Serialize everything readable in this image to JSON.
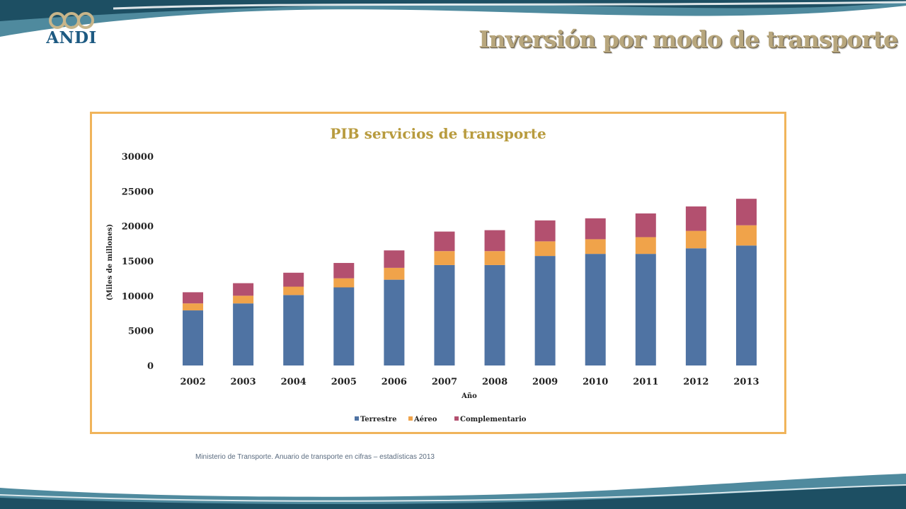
{
  "slide": {
    "title": "Inversión por modo de transporte",
    "logo_text": "ANDI",
    "source": "Ministerio de Transporte. Anuario de transporte en cifras – estadísticas 2013"
  },
  "colors": {
    "terrestre": "#4f73a3",
    "aereo": "#f0a34a",
    "complementario": "#b3506f",
    "title": "#b89b3e",
    "frame": "#f0b45b",
    "wave_dark": "#1d4f63",
    "wave_light": "#4f8a9e"
  },
  "chart_data": {
    "type": "bar",
    "stacked": true,
    "title": "PIB servicios de transporte",
    "xlabel": "Año",
    "ylabel": "(Miles de millones)",
    "categories": [
      "2002",
      "2003",
      "2004",
      "2005",
      "2006",
      "2007",
      "2008",
      "2009",
      "2010",
      "2011",
      "2012",
      "2013"
    ],
    "series": [
      {
        "name": "Terrestre",
        "values": [
          7900,
          8900,
          10100,
          11200,
          12300,
          14400,
          14400,
          15700,
          16000,
          16000,
          16800,
          17200
        ]
      },
      {
        "name": "Aéreo",
        "values": [
          1000,
          1100,
          1200,
          1300,
          1700,
          2000,
          2000,
          2100,
          2100,
          2400,
          2500,
          2900
        ]
      },
      {
        "name": "Complementario",
        "values": [
          1600,
          1800,
          2000,
          2200,
          2500,
          2800,
          3000,
          3000,
          3000,
          3400,
          3500,
          3800
        ]
      }
    ],
    "ylim": [
      0,
      30000
    ],
    "yticks": [
      0,
      5000,
      10000,
      15000,
      20000,
      25000,
      30000
    ],
    "grid": false,
    "legend_position": "bottom"
  }
}
